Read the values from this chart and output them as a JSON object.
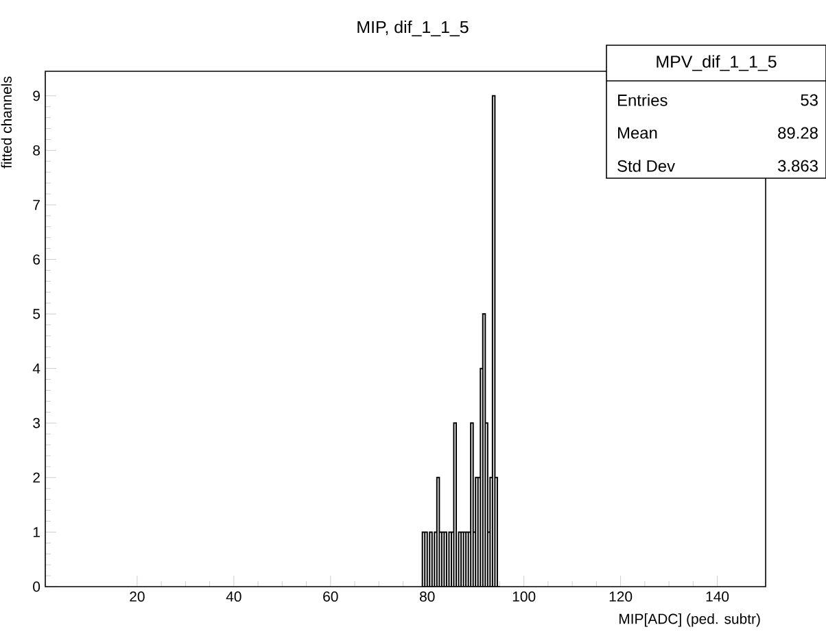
{
  "chart_data": {
    "type": "histogram",
    "title": "MIP, dif_1_1_5",
    "xlabel": "MIP[ADC] (ped. subtr)",
    "ylabel": "fitted channels",
    "annotations": [
      "MPV_dif_1_1_5",
      "Entries",
      "53",
      "Mean",
      "89.28",
      "Std Dev",
      "3.863"
    ],
    "bins": [
      79,
      79.5,
      80,
      80.5,
      81,
      81.5,
      82,
      82.5,
      83,
      83.5,
      84,
      84.5,
      85,
      85.5,
      86,
      86.5,
      87,
      87.5,
      88,
      88.5,
      89,
      89.5,
      90,
      90.5,
      91,
      91.5,
      92,
      92.5,
      93,
      93.5,
      94,
      94.5,
      95
    ],
    "values": [
      1,
      1,
      0,
      1,
      0,
      1,
      2,
      1,
      1,
      1,
      0,
      1,
      1,
      3,
      0,
      1,
      1,
      1,
      1,
      1,
      3,
      1,
      2,
      2,
      4,
      5,
      3,
      1,
      2,
      9,
      2,
      0
    ],
    "color": "#000000",
    "xlim": [
      1,
      150
    ],
    "ylim": [
      0,
      9.45
    ],
    "xticks": [
      20,
      40,
      60,
      80,
      100,
      120,
      140
    ],
    "yticks": [
      0,
      1,
      2,
      3,
      4,
      5,
      6,
      7,
      8,
      9
    ],
    "grid": false
  }
}
